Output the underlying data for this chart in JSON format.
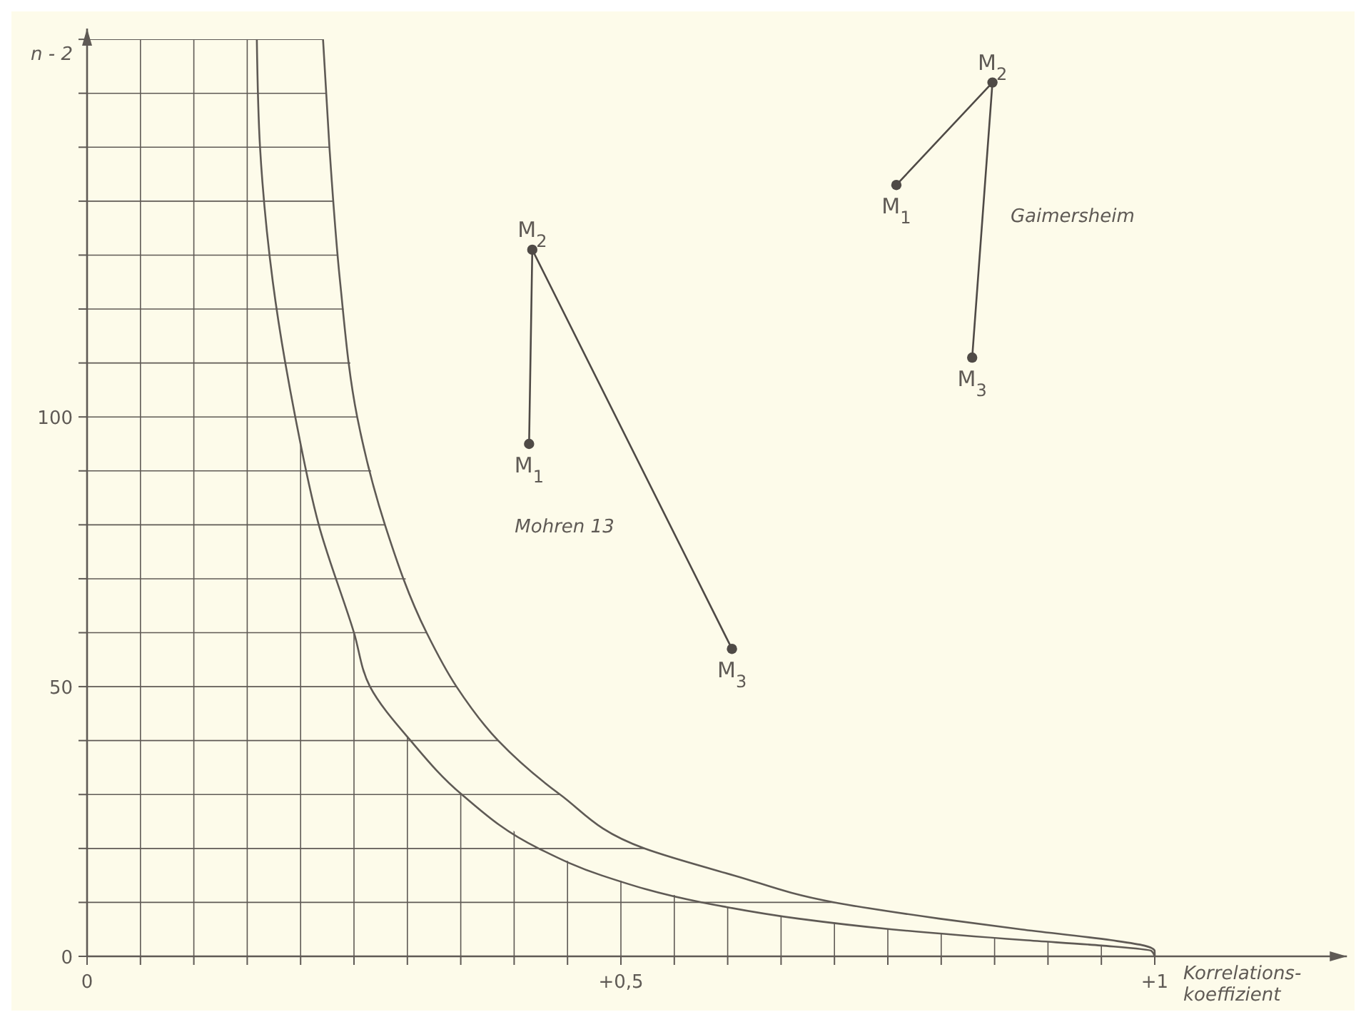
{
  "chart_data": {
    "type": "line",
    "xlabel": "Korrelations-\nkoeffizient",
    "ylabel": "n - 2",
    "xlim": [
      0,
      1.18
    ],
    "ylim": [
      0,
      172
    ],
    "xticks": [
      {
        "value": 0,
        "label": "0"
      },
      {
        "value": 0.05,
        "label": null
      },
      {
        "value": 0.1,
        "label": null
      },
      {
        "value": 0.15,
        "label": null
      },
      {
        "value": 0.2,
        "label": null
      },
      {
        "value": 0.25,
        "label": null
      },
      {
        "value": 0.3,
        "label": null
      },
      {
        "value": 0.35,
        "label": null
      },
      {
        "value": 0.4,
        "label": null
      },
      {
        "value": 0.45,
        "label": null
      },
      {
        "value": 0.5,
        "label": "+0,5"
      },
      {
        "value": 0.55,
        "label": null
      },
      {
        "value": 0.6,
        "label": null
      },
      {
        "value": 0.65,
        "label": null
      },
      {
        "value": 0.7,
        "label": null
      },
      {
        "value": 0.75,
        "label": null
      },
      {
        "value": 0.8,
        "label": null
      },
      {
        "value": 0.85,
        "label": null
      },
      {
        "value": 0.9,
        "label": null
      },
      {
        "value": 0.95,
        "label": null
      },
      {
        "value": 1,
        "label": "+1"
      }
    ],
    "yticks": [
      0,
      {
        "value": 10,
        "label": null
      },
      {
        "value": 20,
        "label": null
      },
      {
        "value": 30,
        "label": null
      },
      {
        "value": 40,
        "label": null
      },
      50,
      {
        "value": 60,
        "label": null
      },
      {
        "value": 70,
        "label": null
      },
      {
        "value": 80,
        "label": null
      },
      {
        "value": 90,
        "label": null
      },
      100,
      {
        "value": 110,
        "label": null
      },
      {
        "value": 120,
        "label": null
      },
      {
        "value": 130,
        "label": null
      },
      {
        "value": 140,
        "label": null
      },
      {
        "value": 150,
        "label": null
      },
      {
        "value": 160,
        "label": null
      },
      {
        "value": 170,
        "label": null
      }
    ],
    "grid": true,
    "series": [
      {
        "color": "#5f5a55",
        "marker": "none",
        "x": [
          1,
          0.997,
          0.95,
          0.878,
          0.754,
          0.666,
          0.576,
          0.482,
          0.423,
          0.351,
          0.303,
          0.265,
          0.25,
          0.217,
          0.195,
          0.174,
          0.162,
          0.159
        ],
        "values": [
          0,
          1,
          2,
          3,
          5,
          7,
          10,
          15,
          20,
          30,
          40,
          50,
          60,
          80,
          100,
          125,
          150,
          170
        ]
      },
      {
        "color": "#5f5a55",
        "marker": "none",
        "x": [
          1,
          0.9999,
          0.99,
          0.959,
          0.875,
          0.798,
          0.7,
          0.606,
          0.522,
          0.443,
          0.385,
          0.346,
          0.318,
          0.279,
          0.253,
          0.237,
          0.227,
          0.221
        ],
        "values": [
          0,
          1,
          2,
          3,
          5,
          7,
          10,
          15,
          20,
          30,
          40,
          50,
          60,
          80,
          100,
          125,
          150,
          170
        ]
      },
      {
        "name": "Mohren 13",
        "color": "#4f4a46",
        "marker": "circle",
        "x": [
          0.414,
          0.417,
          0.604
        ],
        "values": [
          95,
          131,
          57
        ]
      },
      {
        "name": "Gaimersheim",
        "color": "#4f4a46",
        "marker": "circle",
        "x": [
          0.758,
          0.848,
          0.829
        ],
        "values": [
          143,
          162,
          111
        ]
      }
    ],
    "annotations": [
      {
        "text": "M$_{1}$",
        "x": 0.414,
        "y": 95
      },
      {
        "text": "M$_{2}$",
        "x": 0.417,
        "y": 131
      },
      {
        "text": "M$_{3}$",
        "x": 0.604,
        "y": 57
      },
      {
        "text": "M$_{1}$",
        "x": 0.758,
        "y": 143
      },
      {
        "text": "M$_{2}$",
        "x": 0.848,
        "y": 162
      },
      {
        "text": "M$_{3}$",
        "x": 0.829,
        "y": 111
      }
    ]
  }
}
